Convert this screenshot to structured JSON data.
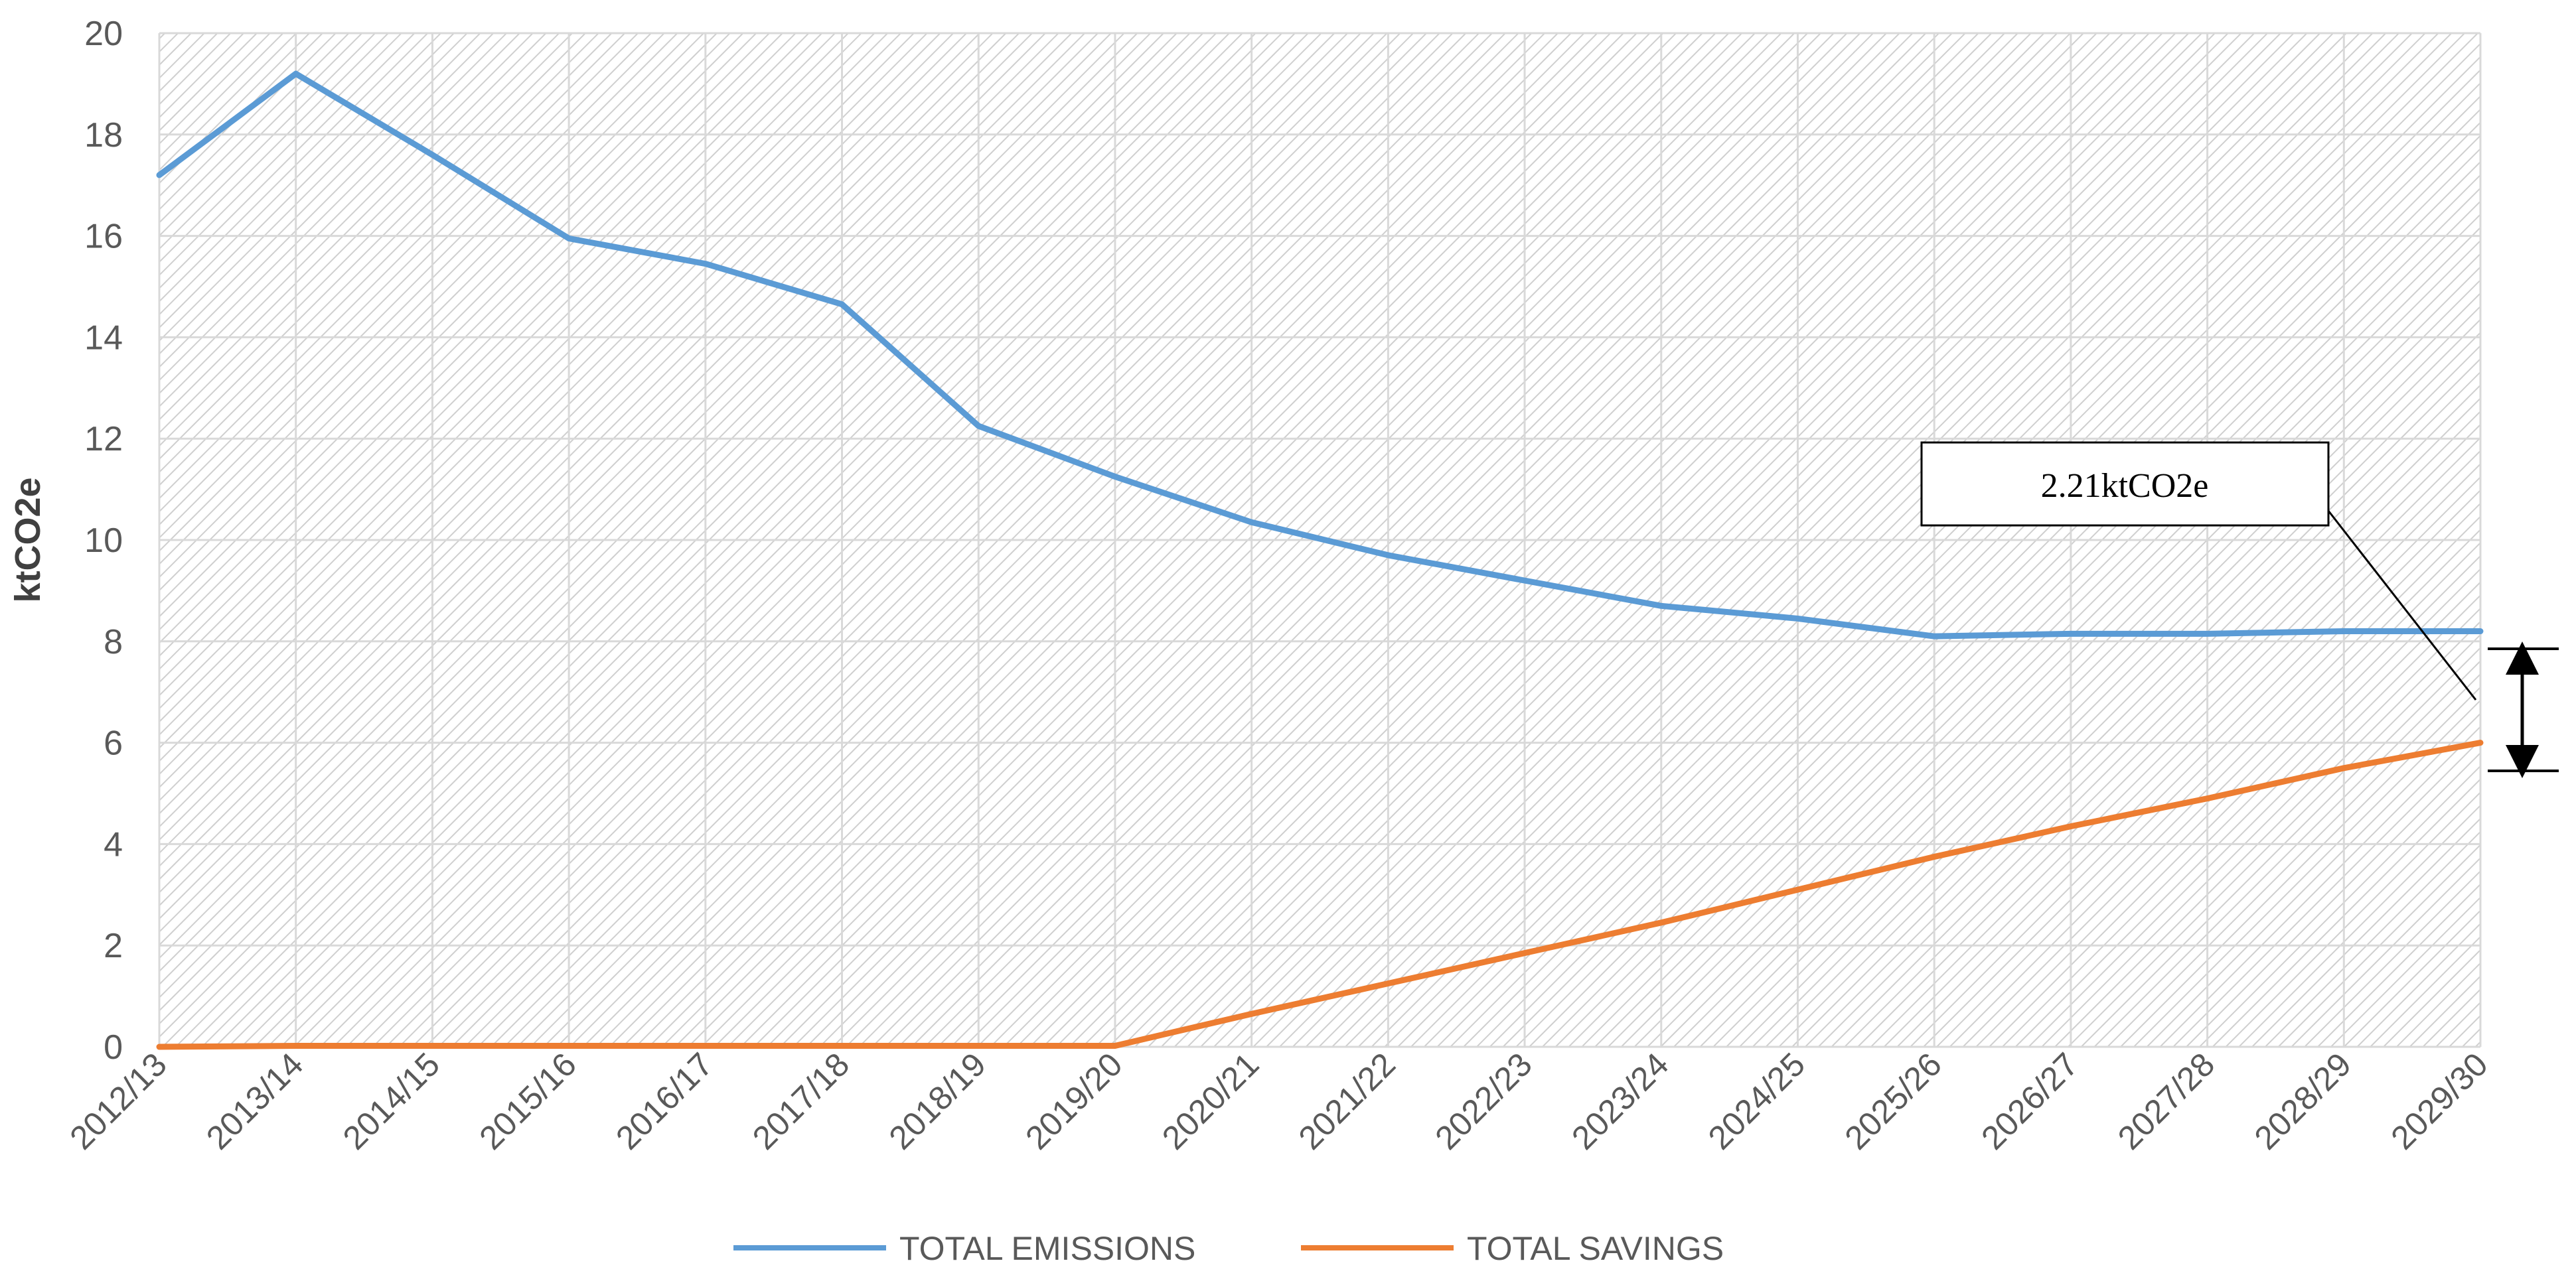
{
  "chart_data": {
    "type": "line",
    "title": "",
    "xlabel": "",
    "ylabel": "ktCO2e",
    "ylim": [
      0,
      20
    ],
    "yticks": [
      0,
      2,
      4,
      6,
      8,
      10,
      12,
      14,
      16,
      18,
      20
    ],
    "grid": true,
    "legend_position": "bottom",
    "categories": [
      "2012/13",
      "2013/14",
      "2014/15",
      "2015/16",
      "2016/17",
      "2017/18",
      "2018/19",
      "2019/20",
      "2020/21",
      "2021/22",
      "2022/23",
      "2023/24",
      "2024/25",
      "2025/26",
      "2026/27",
      "2027/28",
      "2028/29",
      "2029/30"
    ],
    "series": [
      {
        "name": "TOTAL EMISSIONS",
        "color": "#5b9bd5",
        "values": [
          17.2,
          19.2,
          17.6,
          15.95,
          15.45,
          14.65,
          12.25,
          11.25,
          10.35,
          9.7,
          9.2,
          8.7,
          8.45,
          8.1,
          8.15,
          8.15,
          8.2,
          8.2
        ]
      },
      {
        "name": "TOTAL SAVINGS",
        "color": "#ed7d31",
        "values": [
          0.0,
          0.02,
          0.02,
          0.02,
          0.02,
          0.02,
          0.02,
          0.02,
          0.65,
          1.25,
          1.85,
          2.45,
          3.1,
          3.75,
          4.35,
          4.9,
          5.5,
          6.0
        ]
      }
    ],
    "annotations": [
      {
        "text": "2.21ktCO2e",
        "type": "callout-with-double-arrow"
      }
    ]
  }
}
